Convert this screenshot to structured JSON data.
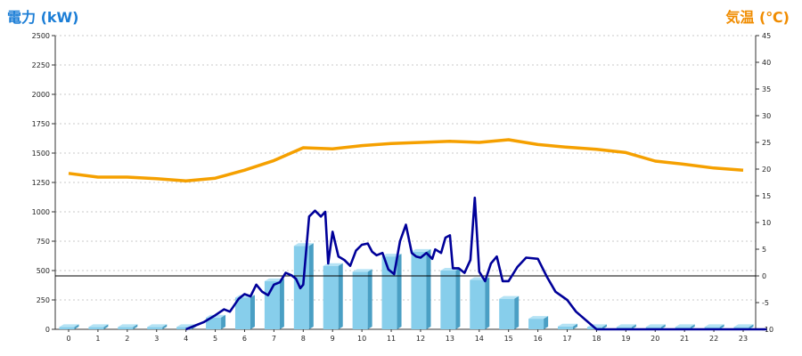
{
  "chart_data": {
    "type": "bar+line",
    "left_axis_title": "電力 (kW)",
    "right_axis_title": "気温 (℃)",
    "ylim_left": [
      0,
      2500
    ],
    "ylim_right": [
      -10,
      45
    ],
    "left_ticks": [
      "0",
      "250",
      "500",
      "750",
      "1000",
      "1250",
      "1500",
      "1750",
      "2000",
      "2250",
      "2500"
    ],
    "right_ticks": [
      "-10",
      "-5",
      "0",
      "5",
      "10",
      "15",
      "20",
      "25",
      "30",
      "35",
      "40",
      "45"
    ],
    "categories": [
      "0",
      "1",
      "2",
      "3",
      "4",
      "5",
      "6",
      "7",
      "8",
      "9",
      "10",
      "11",
      "12",
      "13",
      "14",
      "15",
      "16",
      "17",
      "18",
      "19",
      "20",
      "21",
      "22",
      "23"
    ],
    "colors": {
      "bar": "#87ceeb",
      "power_line": "#000099",
      "temperature_line": "#f5a000",
      "left_title": "#1c7ed6",
      "right_title": "#f08c00"
    },
    "bar_values": [
      20,
      20,
      20,
      20,
      20,
      100,
      270,
      410,
      710,
      540,
      490,
      620,
      660,
      500,
      420,
      260,
      90,
      25,
      20,
      20,
      20,
      20,
      20,
      20
    ],
    "temperature": {
      "x": [
        0,
        1,
        2,
        3,
        4,
        5,
        6,
        7,
        8,
        9,
        10,
        11,
        12,
        13,
        14,
        15,
        16,
        17,
        18,
        19,
        20,
        21,
        22,
        23
      ],
      "values": [
        19.2,
        18.5,
        18.5,
        18.2,
        17.8,
        18.3,
        19.8,
        21.6,
        24.0,
        23.8,
        24.4,
        24.8,
        25.0,
        25.2,
        25.0,
        25.5,
        24.6,
        24.1,
        23.7,
        23.1,
        21.5,
        20.9,
        20.2,
        19.8
      ]
    },
    "power": {
      "x": [
        4.0,
        4.3,
        4.6,
        5.0,
        5.3,
        5.5,
        5.8,
        6.0,
        6.2,
        6.4,
        6.6,
        6.8,
        7.0,
        7.2,
        7.4,
        7.6,
        7.75,
        7.9,
        8.0,
        8.2,
        8.4,
        8.6,
        8.75,
        8.85,
        9.0,
        9.2,
        9.4,
        9.6,
        9.8,
        10.0,
        10.2,
        10.35,
        10.5,
        10.7,
        10.9,
        11.1,
        11.3,
        11.5,
        11.7,
        11.85,
        12.0,
        12.2,
        12.4,
        12.5,
        12.7,
        12.85,
        13.0,
        13.1,
        13.3,
        13.5,
        13.7,
        13.85,
        14.0,
        14.2,
        14.4,
        14.6,
        14.8,
        15.0,
        15.3,
        15.6,
        16.0,
        16.3,
        16.6,
        17.0,
        17.3,
        18.0,
        23.8
      ],
      "values": [
        0,
        30,
        60,
        120,
        170,
        150,
        260,
        300,
        280,
        380,
        320,
        290,
        380,
        400,
        480,
        460,
        430,
        350,
        380,
        960,
        1010,
        960,
        1000,
        560,
        830,
        620,
        590,
        540,
        670,
        720,
        730,
        660,
        630,
        650,
        510,
        470,
        750,
        890,
        650,
        620,
        610,
        650,
        600,
        680,
        650,
        780,
        800,
        520,
        520,
        480,
        590,
        1120,
        490,
        410,
        560,
        620,
        410,
        410,
        530,
        610,
        600,
        450,
        320,
        250,
        150,
        0,
        0
      ]
    }
  }
}
